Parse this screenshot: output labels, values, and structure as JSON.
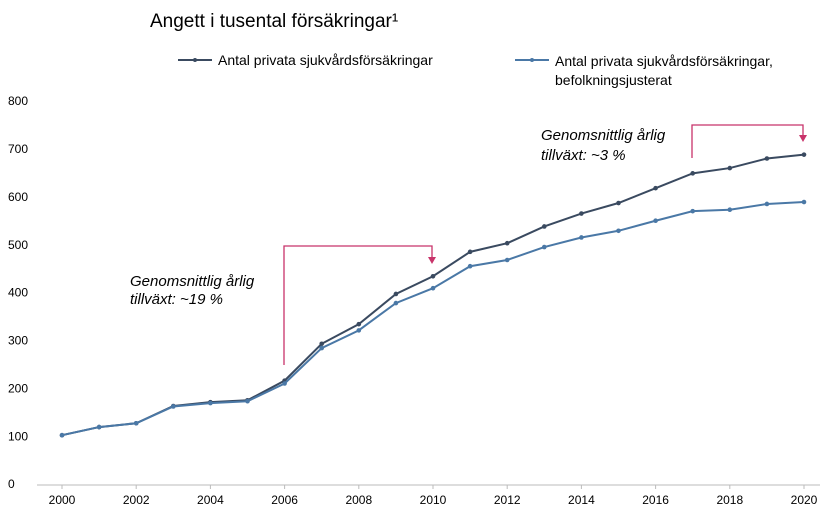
{
  "chart_data": {
    "type": "line",
    "title": "Angett i tusental försäkringar¹",
    "x": [
      2000,
      2001,
      2002,
      2003,
      2004,
      2005,
      2006,
      2007,
      2008,
      2009,
      2010,
      2011,
      2012,
      2013,
      2014,
      2015,
      2016,
      2017,
      2018,
      2019,
      2020
    ],
    "series": [
      {
        "name": "Antal privata sjukvårdsförsäkringar",
        "color": "#3a4a60",
        "values": [
          104,
          121,
          129,
          165,
          173,
          177,
          218,
          295,
          336,
          399,
          436,
          487,
          505,
          540,
          567,
          589,
          620,
          651,
          662,
          682,
          690
        ]
      },
      {
        "name": "Antal privata sjukvårdsförsäkringar, befolkningsjusterat",
        "color": "#4a78a6",
        "values": [
          104,
          121,
          129,
          164,
          171,
          175,
          212,
          286,
          323,
          380,
          411,
          457,
          470,
          497,
          517,
          531,
          552,
          572,
          575,
          587,
          591
        ]
      }
    ],
    "xlim": [
      2000,
      2020
    ],
    "xticks": [
      2000,
      2002,
      2004,
      2006,
      2008,
      2010,
      2012,
      2014,
      2016,
      2018,
      2020
    ],
    "ylim": [
      0,
      800
    ],
    "yticks": [
      0,
      100,
      200,
      300,
      400,
      500,
      600,
      700,
      800
    ],
    "grid": false,
    "annotations": [
      [
        "Genomsnittlig årlig",
        "tillväxt: ~19 %"
      ],
      [
        "Genomsnittlig årlig",
        "tillväxt: ~3 %"
      ]
    ]
  }
}
